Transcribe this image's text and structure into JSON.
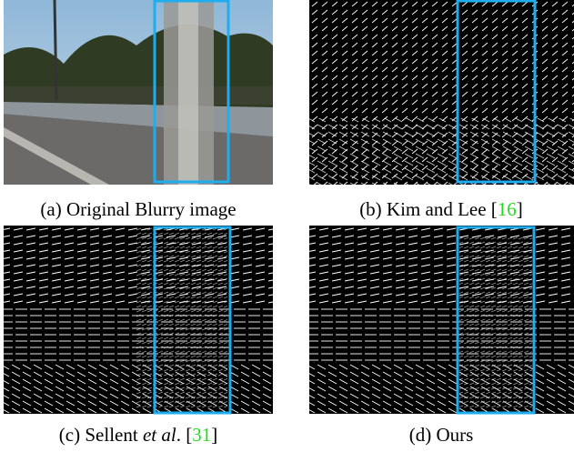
{
  "panels": [
    {
      "label": "(a) Original Blurry image"
    },
    {
      "label": "(b) Kim and Lee [",
      "ref": "16",
      "suffix": "]"
    },
    {
      "label": "(c) Sellent ",
      "emph": "et al",
      "after": ". [",
      "ref": "31",
      "suffix": "]"
    },
    {
      "label": "(d) Ours"
    }
  ]
}
